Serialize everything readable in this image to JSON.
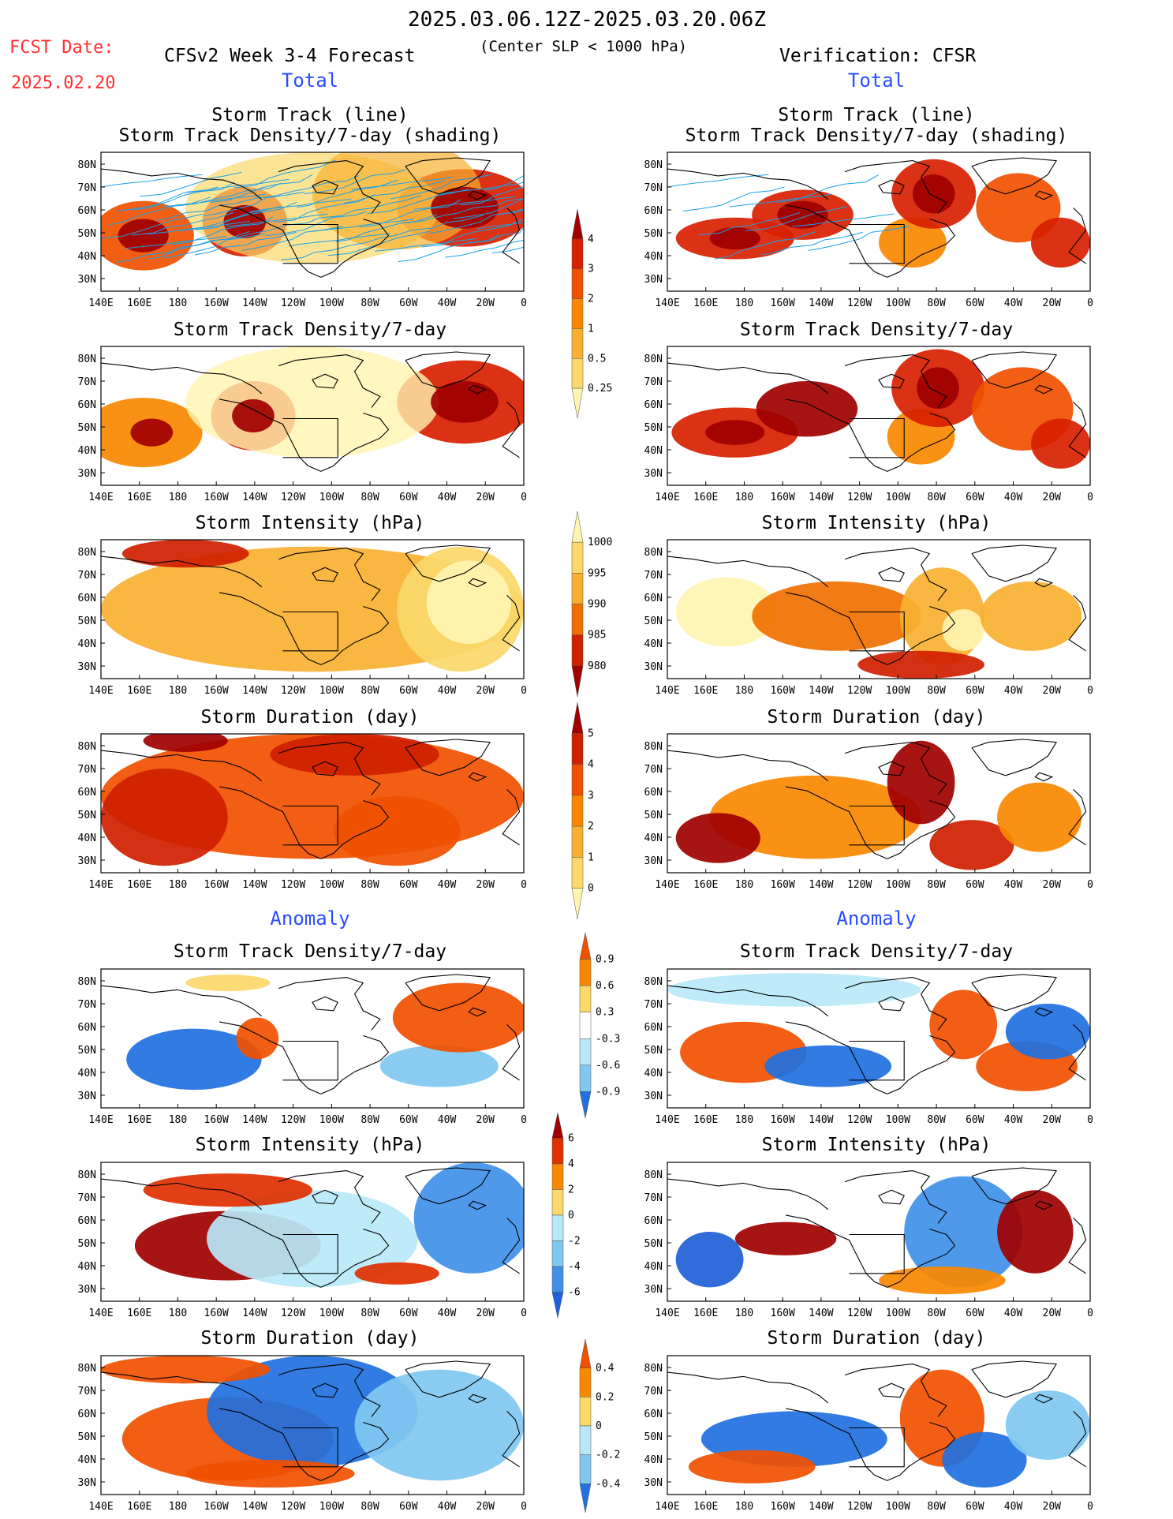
{
  "header": {
    "date_range": "2025.03.06.12Z-2025.03.20.06Z",
    "fcst_label": "FCST Date:",
    "fcst_date": "2025.02.20",
    "model_title": "CFSv2 Week 3-4 Forecast",
    "condition": "(Center SLP < 1000 hPa)",
    "verification": "Verification: CFSR"
  },
  "sections": {
    "total": "Total",
    "anomaly": "Anomaly"
  },
  "axes": {
    "lat_labels": [
      "80N",
      "70N",
      "60N",
      "50N",
      "40N",
      "30N"
    ],
    "lon_labels": [
      "140E",
      "160E",
      "180",
      "160W",
      "140W",
      "120W",
      "100W",
      "80W",
      "60W",
      "40W",
      "20W",
      "0"
    ]
  },
  "panels": {
    "row1_title_a": "Storm Track (line)",
    "row1_title_b": "Storm Track Density/7-day (shading)",
    "row2_title": "Storm Track Density/7-day",
    "row3_title": "Storm Intensity (hPa)",
    "row4_title": "Storm Duration (day)",
    "row5_title": "Storm Track Density/7-day",
    "row6_title": "Storm Intensity (hPa)",
    "row7_title": "Storm Duration (day)"
  },
  "colorbars": [
    {
      "id": "density",
      "labels": [
        "4",
        "3",
        "2",
        "1",
        "0.5",
        "0.25"
      ],
      "colors": [
        "#a00000",
        "#d82000",
        "#f05000",
        "#f88800",
        "#f8b030",
        "#fad86a",
        "#fff4b0"
      ]
    },
    {
      "id": "intensity",
      "labels": [
        "1000",
        "995",
        "990",
        "985",
        "980"
      ],
      "colors": [
        "#fff4b0",
        "#fad86a",
        "#f8b030",
        "#f07000",
        "#d02000",
        "#a00000"
      ]
    },
    {
      "id": "duration",
      "labels": [
        "5",
        "4",
        "3",
        "2",
        "1",
        "0"
      ],
      "colors": [
        "#a00000",
        "#d02000",
        "#f05000",
        "#f88800",
        "#f8b030",
        "#fad86a",
        "#fff4b0"
      ]
    },
    {
      "id": "anom_density",
      "labels": [
        "0.9",
        "0.6",
        "0.3",
        "-0.3",
        "-0.6",
        "-0.9"
      ],
      "colors": [
        "#f05000",
        "#f88800",
        "#fad86a",
        "#ffffff",
        "#b8e8f8",
        "#80c8f0",
        "#2070e0"
      ]
    },
    {
      "id": "anom_intensity",
      "labels": [
        "6",
        "4",
        "2",
        "0",
        "-2",
        "-4",
        "-6"
      ],
      "colors": [
        "#a00000",
        "#e03000",
        "#f88800",
        "#fad86a",
        "#b8e8f8",
        "#80c8f0",
        "#4090e8",
        "#2060d8"
      ]
    },
    {
      "id": "anom_duration",
      "labels": [
        "0.4",
        "0.2",
        "0",
        "-0.2",
        "-0.4"
      ],
      "colors": [
        "#f05000",
        "#f88800",
        "#fad86a",
        "#b8e8f8",
        "#80c8f0",
        "#2070e0"
      ]
    }
  ],
  "colors": {
    "track_line": "#1aa0e8",
    "title_red": "#ff3030",
    "section_blue": "#2a4cff"
  }
}
